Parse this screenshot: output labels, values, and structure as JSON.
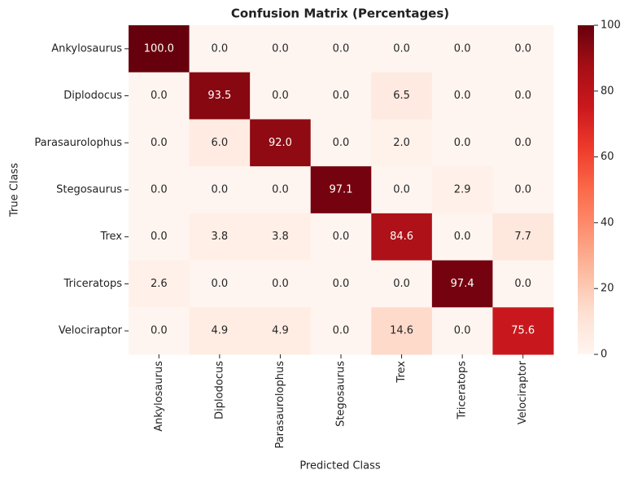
{
  "chart_data": {
    "type": "heatmap",
    "title": "Confusion Matrix (Percentages)",
    "x_label": "Predicted Class",
    "y_label": "True Class",
    "categories": [
      "Ankylosaurus",
      "Diplodocus",
      "Parasaurolophus",
      "Stegosaurus",
      "Trex",
      "Triceratops",
      "Velociraptor"
    ],
    "y_categories": [
      "Ankylosaurus",
      "Diplodocus",
      "Parasaurolophus",
      "Stegosaurus",
      "Trex",
      "Triceratops",
      "Velociraptor"
    ],
    "values": [
      [
        100,
        0,
        0,
        0,
        0,
        0,
        0
      ],
      [
        0,
        93.5,
        0,
        0,
        6.5,
        0,
        0
      ],
      [
        0,
        6,
        92,
        0,
        2,
        0,
        0
      ],
      [
        0,
        0,
        0,
        97.1,
        0,
        2.9,
        0
      ],
      [
        0,
        3.8,
        3.8,
        0,
        84.6,
        0,
        7.7
      ],
      [
        2.6,
        0,
        0,
        0,
        0,
        97.4,
        0
      ],
      [
        0,
        4.9,
        4.9,
        0,
        14.6,
        0,
        75.6
      ]
    ],
    "value_labels": [
      [
        "100.0",
        "0.0",
        "0.0",
        "0.0",
        "0.0",
        "0.0",
        "0.0"
      ],
      [
        "0.0",
        "93.5",
        "0.0",
        "0.0",
        "6.5",
        "0.0",
        "0.0"
      ],
      [
        "0.0",
        "6.0",
        "92.0",
        "0.0",
        "2.0",
        "0.0",
        "0.0"
      ],
      [
        "0.0",
        "0.0",
        "0.0",
        "97.1",
        "0.0",
        "2.9",
        "0.0"
      ],
      [
        "0.0",
        "3.8",
        "3.8",
        "0.0",
        "84.6",
        "0.0",
        "7.7"
      ],
      [
        "2.6",
        "0.0",
        "0.0",
        "0.0",
        "0.0",
        "97.4",
        "0.0"
      ],
      [
        "0.0",
        "4.9",
        "4.9",
        "0.0",
        "14.6",
        "0.0",
        "75.6"
      ]
    ],
    "colormap": "Reds",
    "clim": [
      0,
      100
    ],
    "cticks": [
      0,
      20,
      40,
      60,
      80,
      100
    ]
  }
}
